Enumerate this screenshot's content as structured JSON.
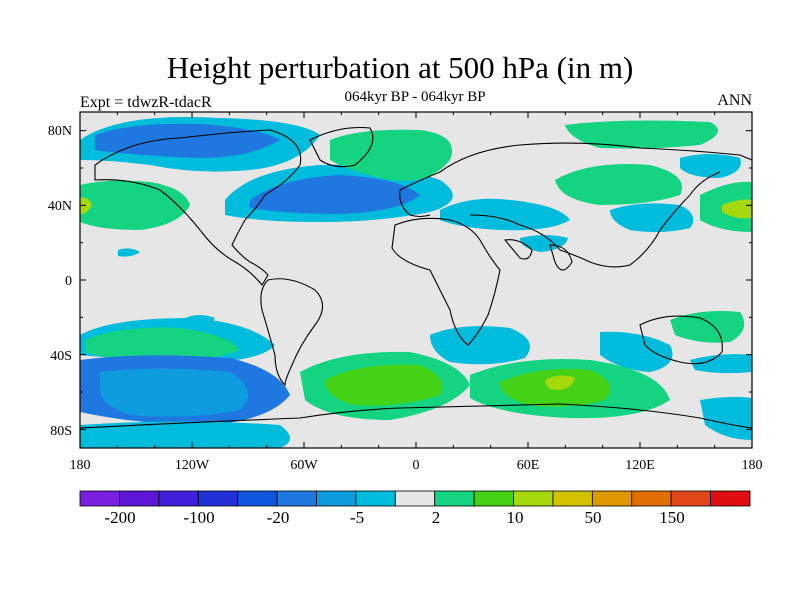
{
  "title": "Height perturbation at 500 hPa (in m)",
  "subtitle": "064kyr BP - 064kyr BP",
  "experiment_label": "Expt = tdwzR-tdacR",
  "season_label": "ANN",
  "map": {
    "lon_range": [
      -180,
      180
    ],
    "lat_range": [
      -90,
      90
    ],
    "x_tick_labels": [
      "180",
      "120W",
      "60W",
      "0",
      "60E",
      "120E",
      "180"
    ],
    "y_tick_labels": [
      "80N",
      "40N",
      "0",
      "40S",
      "80S"
    ],
    "background_color": "#e6e6e6"
  },
  "colorbar": {
    "colors": [
      "#7a1fe0",
      "#5c18d6",
      "#3f1fd9",
      "#2332d8",
      "#0f55e0",
      "#1f78e0",
      "#0f9cde",
      "#00bcdc",
      "#e6e6e6",
      "#14d482",
      "#44d216",
      "#a6d80e",
      "#d4c200",
      "#e09800",
      "#e06e00",
      "#e0461a",
      "#e00e12"
    ],
    "labels": [
      "-200",
      "-100",
      "-20",
      "-5",
      "2",
      "10",
      "50",
      "150"
    ]
  }
}
